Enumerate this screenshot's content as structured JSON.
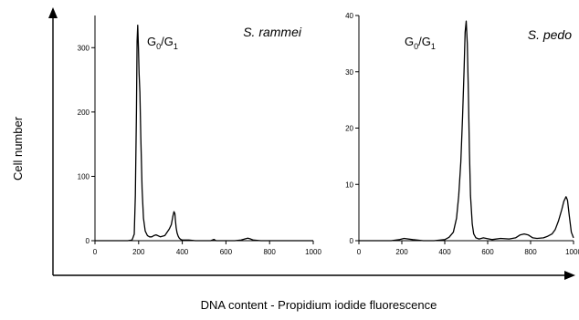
{
  "figure": {
    "ylabel": "Cell number",
    "xlabel": "DNA content - Propidium iodide fluorescence"
  },
  "chart_data": [
    {
      "type": "line",
      "title": "S. rammei",
      "annotation": {
        "main": "G",
        "sub1": "0",
        "sep": "/G",
        "sub2": "1"
      },
      "xlim": [
        0,
        1000
      ],
      "ylim": [
        0,
        350
      ],
      "xticks": [
        "0",
        "200",
        "400",
        "600",
        "800",
        "1000"
      ],
      "yticks": [
        "0",
        "100",
        "200",
        "300"
      ],
      "xtick_values": [
        0,
        200,
        400,
        600,
        800,
        1000
      ],
      "ytick_values": [
        0,
        100,
        200,
        300
      ],
      "series": [
        {
          "x": [
            0,
            100,
            150,
            170,
            180,
            185,
            190,
            193,
            196,
            199,
            202,
            206,
            210,
            216,
            222,
            230,
            240,
            250,
            260,
            270,
            280,
            300,
            320,
            340,
            350,
            357,
            362,
            366,
            369,
            372,
            376,
            381,
            386,
            393,
            400,
            410,
            430,
            460,
            500,
            530,
            545,
            555,
            570,
            600,
            640,
            670,
            690,
            700,
            710,
            725,
            760,
            800,
            900,
            1000
          ],
          "y": [
            0,
            0,
            0,
            1,
            10,
            70,
            200,
            310,
            335,
            300,
            260,
            230,
            160,
            80,
            35,
            15,
            8,
            6,
            6,
            8,
            9,
            6,
            8,
            18,
            25,
            38,
            45,
            42,
            30,
            20,
            12,
            7,
            4,
            2,
            1,
            1,
            1,
            0,
            0,
            0,
            2,
            0,
            0,
            0,
            0,
            1,
            3,
            4,
            3,
            1,
            0,
            0,
            0,
            0
          ]
        }
      ]
    },
    {
      "type": "line",
      "title": "S. pedo",
      "annotation": {
        "main": "G",
        "sub1": "0",
        "sep": "/G",
        "sub2": "1"
      },
      "xlim": [
        0,
        1000
      ],
      "ylim": [
        0,
        40
      ],
      "xticks": [
        "0",
        "200",
        "400",
        "600",
        "800",
        "1000"
      ],
      "yticks": [
        "0",
        "10",
        "20",
        "30",
        "40"
      ],
      "xtick_values": [
        0,
        200,
        400,
        600,
        800,
        1000
      ],
      "ytick_values": [
        0,
        10,
        20,
        30,
        40
      ],
      "series": [
        {
          "x": [
            0,
            150,
            190,
            210,
            250,
            300,
            350,
            400,
            420,
            440,
            455,
            465,
            475,
            483,
            490,
            495,
            500,
            505,
            510,
            515,
            520,
            528,
            535,
            545,
            560,
            580,
            620,
            660,
            700,
            730,
            750,
            770,
            790,
            810,
            830,
            860,
            880,
            900,
            915,
            930,
            945,
            955,
            965,
            972,
            980,
            990,
            1000
          ],
          "y": [
            0,
            0,
            0.2,
            0.4,
            0.2,
            0,
            0,
            0.2,
            0.6,
            1.5,
            4,
            8,
            14,
            22,
            30,
            37,
            39,
            35,
            26,
            16,
            8,
            3,
            1.2,
            0.5,
            0.3,
            0.5,
            0.2,
            0.4,
            0.3,
            0.5,
            1,
            1.2,
            1,
            0.5,
            0.4,
            0.5,
            0.8,
            1.2,
            2,
            3.5,
            5.5,
            7,
            7.8,
            7.2,
            4.5,
            1.5,
            0.5
          ]
        }
      ]
    }
  ]
}
